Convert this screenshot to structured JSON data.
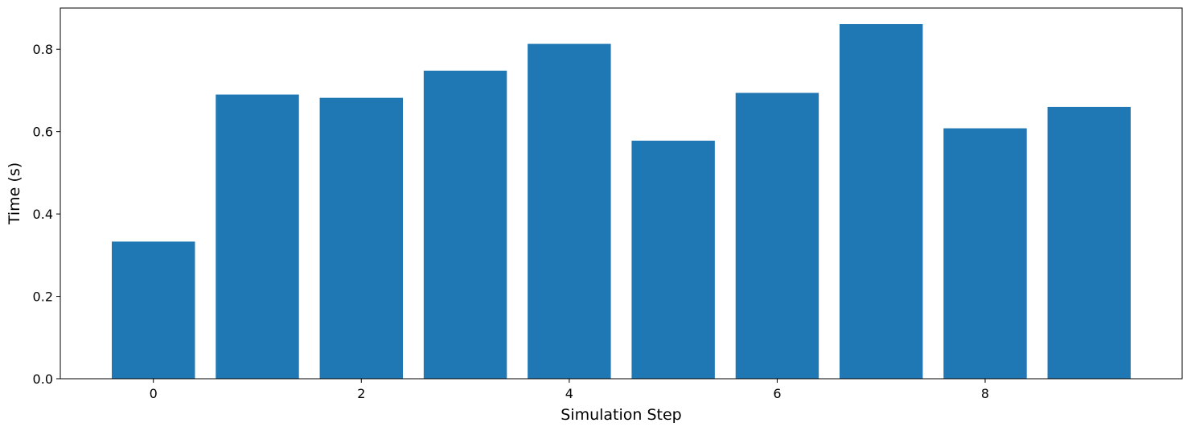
{
  "chart_data": {
    "type": "bar",
    "x": [
      0,
      1,
      2,
      3,
      4,
      5,
      6,
      7,
      8,
      9
    ],
    "values": [
      0.333,
      0.69,
      0.682,
      0.748,
      0.813,
      0.578,
      0.694,
      0.861,
      0.608,
      0.66
    ],
    "title": "",
    "xlabel": "Simulation Step",
    "ylabel": "Time (s)",
    "xlim": [
      -0.895,
      9.895
    ],
    "ylim": [
      0.0,
      0.9
    ],
    "xticks": [
      0,
      2,
      4,
      6,
      8
    ],
    "xtick_labels": [
      "0",
      "2",
      "4",
      "6",
      "8"
    ],
    "yticks": [
      0.0,
      0.2,
      0.4,
      0.6,
      0.8
    ],
    "ytick_labels": [
      "0.0",
      "0.2",
      "0.4",
      "0.6",
      "0.8"
    ],
    "bar_width": 0.8,
    "bar_color": "#1f77b4",
    "grid": false,
    "legend": "none"
  }
}
